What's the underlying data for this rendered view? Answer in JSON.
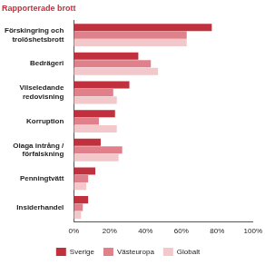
{
  "chart_data": {
    "type": "bar",
    "orientation": "horizontal",
    "title": "Rapporterade brott",
    "categories": [
      "Förskingring och trolöshetsbrott",
      "Bedrägeri",
      "Vilseledande redovisning",
      "Korruption",
      "Olaga intrång / förfalskning",
      "Penningtvätt",
      "Insiderhandel"
    ],
    "series": [
      {
        "name": "Sverige",
        "color": "#c0303d",
        "values": [
          77,
          36,
          31,
          23,
          15,
          12,
          8
        ]
      },
      {
        "name": "Västeuropa",
        "color": "#e0808a",
        "values": [
          63,
          43,
          22,
          14,
          27,
          8,
          5
        ]
      },
      {
        "name": "Globalt",
        "color": "#f2c8cb",
        "values": [
          63,
          47,
          24,
          24,
          25,
          7,
          4
        ]
      }
    ],
    "xlim": [
      0,
      100
    ],
    "xticks": [
      {
        "value": 0,
        "label": "0%"
      },
      {
        "value": 20,
        "label": "20%"
      },
      {
        "value": 40,
        "label": "40%"
      },
      {
        "value": 60,
        "label": "60%"
      },
      {
        "value": 80,
        "label": "80%"
      },
      {
        "value": 100,
        "label": "100%"
      }
    ],
    "grid": false,
    "legend": "bottom"
  }
}
